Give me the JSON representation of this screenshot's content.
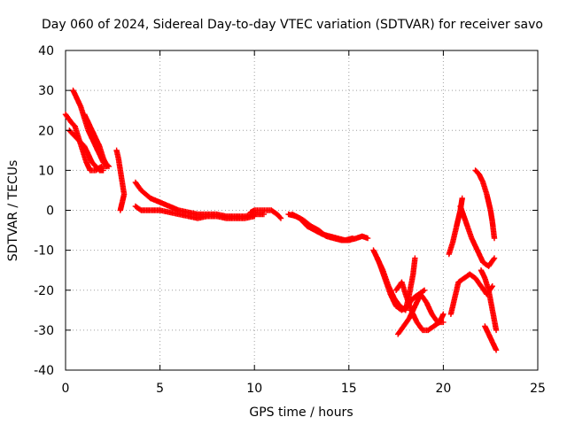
{
  "chart_data": {
    "type": "scatter",
    "title": "Day 060 of 2024, Sidereal Day-to-day VTEC variation (SDTVAR) for receiver savo",
    "xlabel": "GPS time / hours",
    "ylabel": "SDTVAR / TECUs",
    "xlim": [
      0,
      25
    ],
    "ylim": [
      -40,
      40
    ],
    "xticks": [
      "0",
      "5",
      "10",
      "15",
      "20",
      "25"
    ],
    "yticks": [
      "-40",
      "-30",
      "-20",
      "-10",
      "0",
      "10",
      "20",
      "30",
      "40"
    ],
    "grid": true,
    "marker": "plus",
    "series": [
      {
        "name": "SDTVAR",
        "color": "#ff0000",
        "segments": [
          [
            [
              0.0,
              24
            ],
            [
              0.3,
              22
            ],
            [
              0.5,
              21
            ],
            [
              0.7,
              18
            ],
            [
              0.9,
              15
            ],
            [
              1.1,
              12
            ],
            [
              1.3,
              10
            ],
            [
              1.6,
              10
            ],
            [
              1.9,
              11
            ],
            [
              2.2,
              11
            ]
          ],
          [
            [
              0.2,
              20
            ],
            [
              0.4,
              19
            ],
            [
              0.6,
              18
            ],
            [
              0.8,
              17
            ],
            [
              1.0,
              16
            ],
            [
              1.2,
              14
            ],
            [
              1.4,
              12
            ],
            [
              1.6,
              11
            ],
            [
              1.8,
              10
            ],
            [
              2.0,
              10
            ]
          ],
          [
            [
              0.4,
              30
            ],
            [
              0.6,
              28
            ],
            [
              0.8,
              26
            ],
            [
              1.0,
              23
            ],
            [
              1.2,
              20
            ],
            [
              1.4,
              18
            ],
            [
              1.6,
              16
            ],
            [
              1.8,
              14
            ],
            [
              2.0,
              12
            ],
            [
              2.3,
              11
            ]
          ],
          [
            [
              1.0,
              24
            ],
            [
              1.2,
              22
            ],
            [
              1.4,
              20
            ],
            [
              1.6,
              18
            ],
            [
              1.8,
              16
            ],
            [
              2.0,
              13
            ],
            [
              2.2,
              11
            ]
          ],
          [
            [
              2.7,
              15
            ],
            [
              2.8,
              13
            ],
            [
              2.9,
              10
            ],
            [
              3.0,
              7
            ],
            [
              3.1,
              4
            ],
            [
              3.0,
              2
            ],
            [
              2.9,
              0
            ]
          ],
          [
            [
              3.7,
              7
            ],
            [
              4.0,
              5
            ],
            [
              4.5,
              3
            ],
            [
              5.0,
              2
            ],
            [
              5.5,
              1
            ],
            [
              6.0,
              0
            ],
            [
              6.5,
              -0.5
            ],
            [
              7.0,
              -1
            ],
            [
              7.5,
              -1
            ],
            [
              8.0,
              -1
            ],
            [
              8.5,
              -1.5
            ],
            [
              9.0,
              -1.5
            ],
            [
              9.5,
              -1.5
            ],
            [
              10.0,
              -1
            ],
            [
              10.5,
              -1
            ]
          ],
          [
            [
              3.7,
              1
            ],
            [
              4.0,
              0
            ],
            [
              4.5,
              0
            ],
            [
              5.0,
              0
            ],
            [
              5.5,
              -0.5
            ],
            [
              6.0,
              -1
            ],
            [
              6.5,
              -1.5
            ],
            [
              7.0,
              -2
            ],
            [
              7.5,
              -1.5
            ],
            [
              8.0,
              -1.5
            ],
            [
              8.5,
              -2
            ],
            [
              9.0,
              -2
            ],
            [
              9.5,
              -2
            ],
            [
              10.0,
              -1.5
            ]
          ],
          [
            [
              9.8,
              -0.5
            ],
            [
              10.0,
              0
            ],
            [
              10.3,
              0
            ],
            [
              10.6,
              0
            ],
            [
              10.9,
              0
            ],
            [
              11.2,
              -1
            ],
            [
              11.4,
              -2
            ]
          ],
          [
            [
              11.8,
              -1
            ],
            [
              12.2,
              -1.5
            ],
            [
              12.6,
              -2.5
            ],
            [
              13.0,
              -4
            ],
            [
              13.4,
              -5
            ],
            [
              13.8,
              -6.5
            ],
            [
              14.2,
              -7
            ],
            [
              14.6,
              -7.5
            ],
            [
              15.0,
              -7.5
            ],
            [
              15.4,
              -7
            ],
            [
              15.7,
              -6.5
            ],
            [
              16.0,
              -7
            ]
          ],
          [
            [
              12.0,
              -1
            ],
            [
              12.4,
              -2
            ],
            [
              12.8,
              -4
            ],
            [
              13.2,
              -5
            ],
            [
              13.6,
              -6
            ],
            [
              14.0,
              -6.5
            ],
            [
              14.4,
              -7
            ],
            [
              14.8,
              -7.5
            ],
            [
              15.2,
              -7
            ]
          ],
          [
            [
              16.3,
              -10
            ],
            [
              16.6,
              -13
            ],
            [
              16.9,
              -17
            ],
            [
              17.2,
              -21
            ],
            [
              17.5,
              -24
            ],
            [
              17.8,
              -25
            ],
            [
              18.1,
              -24
            ],
            [
              18.4,
              -22
            ],
            [
              18.7,
              -21
            ],
            [
              19.0,
              -20
            ]
          ],
          [
            [
              16.5,
              -12
            ],
            [
              16.8,
              -15
            ],
            [
              17.1,
              -19
            ],
            [
              17.4,
              -22
            ],
            [
              17.7,
              -24
            ],
            [
              18.0,
              -25
            ],
            [
              18.2,
              -21
            ],
            [
              18.4,
              -16
            ],
            [
              18.5,
              -12
            ]
          ],
          [
            [
              17.5,
              -20
            ],
            [
              17.8,
              -18
            ],
            [
              18.0,
              -21
            ],
            [
              18.3,
              -25
            ],
            [
              18.6,
              -28
            ],
            [
              18.9,
              -30
            ],
            [
              19.2,
              -30
            ],
            [
              19.5,
              -29
            ],
            [
              19.8,
              -28
            ],
            [
              20.0,
              -26
            ]
          ],
          [
            [
              17.6,
              -31
            ],
            [
              17.9,
              -29
            ],
            [
              18.2,
              -27
            ],
            [
              18.5,
              -24
            ],
            [
              18.8,
              -21
            ],
            [
              19.1,
              -23
            ],
            [
              19.4,
              -26
            ],
            [
              19.7,
              -28
            ],
            [
              20.0,
              -28
            ]
          ],
          [
            [
              20.4,
              -26
            ],
            [
              20.6,
              -22
            ],
            [
              20.8,
              -18
            ],
            [
              21.1,
              -17
            ],
            [
              21.4,
              -16
            ],
            [
              21.7,
              -17
            ],
            [
              22.0,
              -19
            ],
            [
              22.3,
              -21
            ],
            [
              22.6,
              -19
            ]
          ],
          [
            [
              20.3,
              -11
            ],
            [
              20.5,
              -8
            ],
            [
              20.7,
              -4
            ],
            [
              20.9,
              0
            ],
            [
              21.0,
              3
            ]
          ],
          [
            [
              20.9,
              1
            ],
            [
              21.2,
              -3
            ],
            [
              21.5,
              -7
            ],
            [
              21.8,
              -10
            ],
            [
              22.1,
              -13
            ],
            [
              22.4,
              -14
            ],
            [
              22.7,
              -12
            ]
          ],
          [
            [
              21.7,
              10
            ],
            [
              21.9,
              9
            ],
            [
              22.1,
              7
            ],
            [
              22.3,
              4
            ],
            [
              22.5,
              0
            ],
            [
              22.6,
              -3
            ],
            [
              22.7,
              -7
            ]
          ],
          [
            [
              22.0,
              -15
            ],
            [
              22.2,
              -17
            ],
            [
              22.4,
              -20
            ],
            [
              22.6,
              -25
            ],
            [
              22.8,
              -30
            ]
          ],
          [
            [
              22.2,
              -29
            ],
            [
              22.4,
              -31
            ],
            [
              22.6,
              -33
            ],
            [
              22.8,
              -35
            ]
          ]
        ]
      }
    ]
  }
}
